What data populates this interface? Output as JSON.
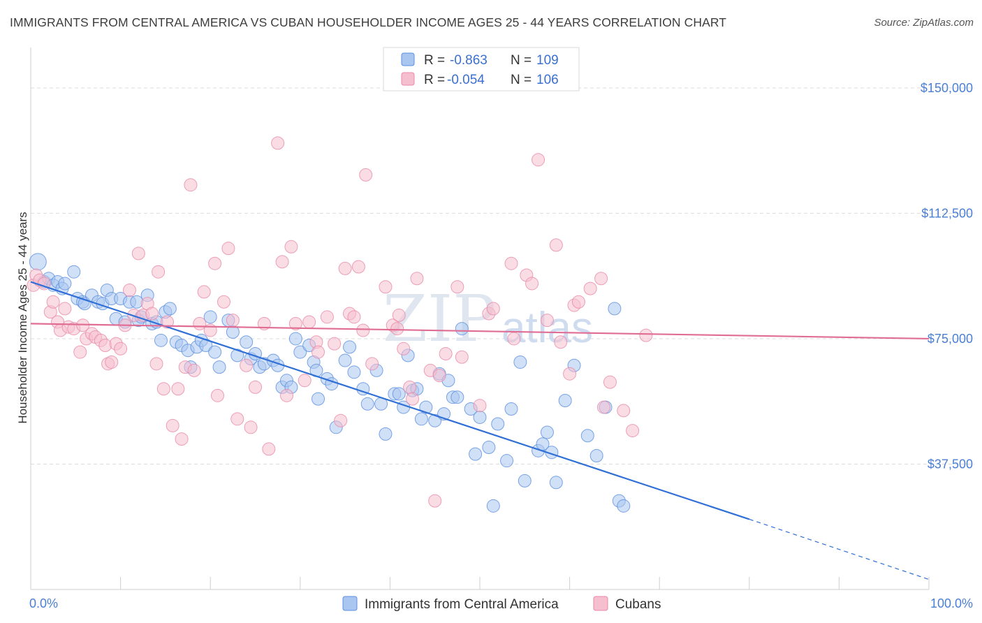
{
  "title": "IMMIGRANTS FROM CENTRAL AMERICA VS CUBAN HOUSEHOLDER INCOME AGES 25 - 44 YEARS CORRELATION CHART",
  "source": "Source: ZipAtlas.com",
  "watermark": {
    "zip": "ZIP",
    "atlas": "atlas"
  },
  "legend": {
    "r_label": "R =",
    "n_label": "N =",
    "series": [
      {
        "r": "-0.863",
        "n": "109"
      },
      {
        "r": "-0.054",
        "n": "106"
      }
    ]
  },
  "chart_data": {
    "type": "scatter",
    "ylabel": "Householder Income Ages 25 - 44 years",
    "xlim": [
      0,
      100
    ],
    "ylim": [
      0,
      160000
    ],
    "x_tick_labels": [
      "0.0%",
      "100.0%"
    ],
    "y_ticks": [
      {
        "value": 37500,
        "label": "$37,500"
      },
      {
        "value": 75000,
        "label": "$75,000"
      },
      {
        "value": 112500,
        "label": "$112,500"
      },
      {
        "value": 150000,
        "label": "$150,000"
      }
    ],
    "grid": "horizontal dashed",
    "series": [
      {
        "name": "Immigrants from Central America",
        "color": "#5b8fe0",
        "fill": "#a9c6f1",
        "trend": {
          "x0": 0,
          "y0": 92000,
          "x1": 80,
          "y1": 21000,
          "dash_to_x": 100,
          "dash_to_y": 3000
        },
        "points": [
          [
            0.8,
            98000
          ],
          [
            1.5,
            92000
          ],
          [
            2,
            93000
          ],
          [
            2.5,
            91000
          ],
          [
            3,
            92000
          ],
          [
            3.5,
            90000
          ],
          [
            3.8,
            91500
          ],
          [
            4.8,
            95000
          ],
          [
            5.2,
            87000
          ],
          [
            5.8,
            86000
          ],
          [
            6,
            85500
          ],
          [
            6.8,
            88000
          ],
          [
            7.5,
            86000
          ],
          [
            8,
            85500
          ],
          [
            8.5,
            89500
          ],
          [
            9,
            87000
          ],
          [
            9.5,
            81000
          ],
          [
            10,
            87000
          ],
          [
            10.5,
            80000
          ],
          [
            11,
            86000
          ],
          [
            11.8,
            86000
          ],
          [
            12,
            80500
          ],
          [
            12.3,
            81500
          ],
          [
            13,
            88000
          ],
          [
            13.5,
            79500
          ],
          [
            14,
            80000
          ],
          [
            14.5,
            74500
          ],
          [
            15,
            83000
          ],
          [
            15.5,
            84000
          ],
          [
            16.2,
            74000
          ],
          [
            16.8,
            73000
          ],
          [
            17.5,
            71500
          ],
          [
            17.8,
            66500
          ],
          [
            18.5,
            72500
          ],
          [
            19,
            74500
          ],
          [
            19.5,
            73000
          ],
          [
            20,
            81500
          ],
          [
            20.5,
            71000
          ],
          [
            21,
            66500
          ],
          [
            22,
            80500
          ],
          [
            22.5,
            77000
          ],
          [
            23,
            70000
          ],
          [
            24,
            74000
          ],
          [
            24.5,
            69000
          ],
          [
            25,
            70500
          ],
          [
            25.5,
            66500
          ],
          [
            26,
            67500
          ],
          [
            27,
            68500
          ],
          [
            27.5,
            67000
          ],
          [
            28,
            60500
          ],
          [
            28.5,
            62500
          ],
          [
            29,
            60500
          ],
          [
            29.5,
            75000
          ],
          [
            30,
            71000
          ],
          [
            31,
            73000
          ],
          [
            31.5,
            68000
          ],
          [
            31.8,
            65500
          ],
          [
            32,
            57000
          ],
          [
            33,
            63000
          ],
          [
            33.5,
            61500
          ],
          [
            34,
            48500
          ],
          [
            35,
            68500
          ],
          [
            35.5,
            72500
          ],
          [
            36,
            65000
          ],
          [
            37,
            60000
          ],
          [
            37.5,
            55500
          ],
          [
            38.5,
            65500
          ],
          [
            39,
            55500
          ],
          [
            39.5,
            46500
          ],
          [
            40.5,
            58500
          ],
          [
            41,
            58500
          ],
          [
            41.5,
            54500
          ],
          [
            42,
            70000
          ],
          [
            42.5,
            59500
          ],
          [
            43,
            60000
          ],
          [
            43.5,
            51000
          ],
          [
            44,
            54500
          ],
          [
            45,
            50500
          ],
          [
            45.5,
            64500
          ],
          [
            46,
            52500
          ],
          [
            46.5,
            62500
          ],
          [
            47,
            57500
          ],
          [
            47.5,
            57500
          ],
          [
            48,
            78000
          ],
          [
            49,
            54000
          ],
          [
            49.5,
            40500
          ],
          [
            50,
            51500
          ],
          [
            51,
            42500
          ],
          [
            51.5,
            25000
          ],
          [
            52,
            49500
          ],
          [
            53,
            38500
          ],
          [
            53.5,
            54000
          ],
          [
            54.5,
            68000
          ],
          [
            55,
            32500
          ],
          [
            56.5,
            41500
          ],
          [
            57,
            43500
          ],
          [
            57.5,
            47000
          ],
          [
            58,
            41000
          ],
          [
            58.5,
            32000
          ],
          [
            59.5,
            56500
          ],
          [
            60.5,
            67000
          ],
          [
            62,
            46000
          ],
          [
            63,
            40000
          ],
          [
            64,
            54500
          ],
          [
            65,
            84000
          ],
          [
            65.5,
            26500
          ],
          [
            66,
            25000
          ]
        ]
      },
      {
        "name": "Cubans",
        "color": "#e88aa8",
        "fill": "#f6bfd0",
        "trend": {
          "x0": 0,
          "y0": 79500,
          "x1": 100,
          "y1": 75000
        },
        "points": [
          [
            0.3,
            91000
          ],
          [
            0.6,
            94000
          ],
          [
            1,
            92500
          ],
          [
            1.5,
            91500
          ],
          [
            2.2,
            83000
          ],
          [
            2.5,
            86000
          ],
          [
            3,
            80000
          ],
          [
            3.3,
            77500
          ],
          [
            3.8,
            84000
          ],
          [
            4.2,
            78500
          ],
          [
            4.8,
            78000
          ],
          [
            5.5,
            71000
          ],
          [
            5.8,
            79000
          ],
          [
            6.2,
            75000
          ],
          [
            6.8,
            76500
          ],
          [
            7.2,
            75500
          ],
          [
            7.8,
            74500
          ],
          [
            8.3,
            73000
          ],
          [
            8.6,
            67500
          ],
          [
            9,
            68000
          ],
          [
            9.5,
            73500
          ],
          [
            10,
            72000
          ],
          [
            10.5,
            79000
          ],
          [
            11,
            89500
          ],
          [
            11.5,
            82000
          ],
          [
            12,
            100500
          ],
          [
            12.5,
            82000
          ],
          [
            13,
            85500
          ],
          [
            13.5,
            82500
          ],
          [
            14,
            67500
          ],
          [
            14.2,
            95000
          ],
          [
            14.8,
            60000
          ],
          [
            15.2,
            80000
          ],
          [
            15.8,
            49000
          ],
          [
            16.4,
            60000
          ],
          [
            16.8,
            45000
          ],
          [
            17.2,
            66500
          ],
          [
            17.8,
            121000
          ],
          [
            18.2,
            65500
          ],
          [
            18.8,
            79500
          ],
          [
            19.3,
            89000
          ],
          [
            20,
            77500
          ],
          [
            20.5,
            97500
          ],
          [
            20.8,
            58000
          ],
          [
            21.5,
            86000
          ],
          [
            22,
            102000
          ],
          [
            22.5,
            80500
          ],
          [
            23,
            51000
          ],
          [
            24,
            67000
          ],
          [
            24.5,
            48500
          ],
          [
            25,
            60500
          ],
          [
            26,
            79500
          ],
          [
            26.5,
            42000
          ],
          [
            27.5,
            133500
          ],
          [
            28,
            98000
          ],
          [
            28.5,
            58000
          ],
          [
            29,
            102500
          ],
          [
            29.5,
            79500
          ],
          [
            30.5,
            62500
          ],
          [
            31,
            80000
          ],
          [
            31.8,
            74000
          ],
          [
            32,
            71000
          ],
          [
            33,
            81500
          ],
          [
            33.8,
            73500
          ],
          [
            34.5,
            50500
          ],
          [
            35,
            96000
          ],
          [
            35.5,
            82500
          ],
          [
            36,
            81500
          ],
          [
            36.5,
            96500
          ],
          [
            37,
            77500
          ],
          [
            37.3,
            124000
          ],
          [
            38,
            67500
          ],
          [
            39.5,
            90500
          ],
          [
            40.3,
            79000
          ],
          [
            40.8,
            78000
          ],
          [
            41,
            82000
          ],
          [
            41.5,
            72000
          ],
          [
            42.2,
            60500
          ],
          [
            42.5,
            57000
          ],
          [
            43,
            93000
          ],
          [
            44.5,
            65500
          ],
          [
            45,
            26500
          ],
          [
            45.5,
            64000
          ],
          [
            46.2,
            70500
          ],
          [
            47.5,
            90500
          ],
          [
            48,
            69500
          ],
          [
            50,
            55000
          ],
          [
            51,
            82500
          ],
          [
            51.5,
            84000
          ],
          [
            53.5,
            97500
          ],
          [
            53.8,
            75000
          ],
          [
            55.2,
            94000
          ],
          [
            55.8,
            91500
          ],
          [
            56.5,
            128500
          ],
          [
            57.5,
            80500
          ],
          [
            58.5,
            103000
          ],
          [
            59,
            74000
          ],
          [
            60,
            64500
          ],
          [
            60.5,
            85000
          ],
          [
            61,
            86000
          ],
          [
            62.3,
            90000
          ],
          [
            63.5,
            93000
          ],
          [
            63.8,
            54500
          ],
          [
            64.5,
            62000
          ],
          [
            66,
            53500
          ],
          [
            67,
            47500
          ],
          [
            68.5,
            76000
          ]
        ]
      }
    ]
  }
}
